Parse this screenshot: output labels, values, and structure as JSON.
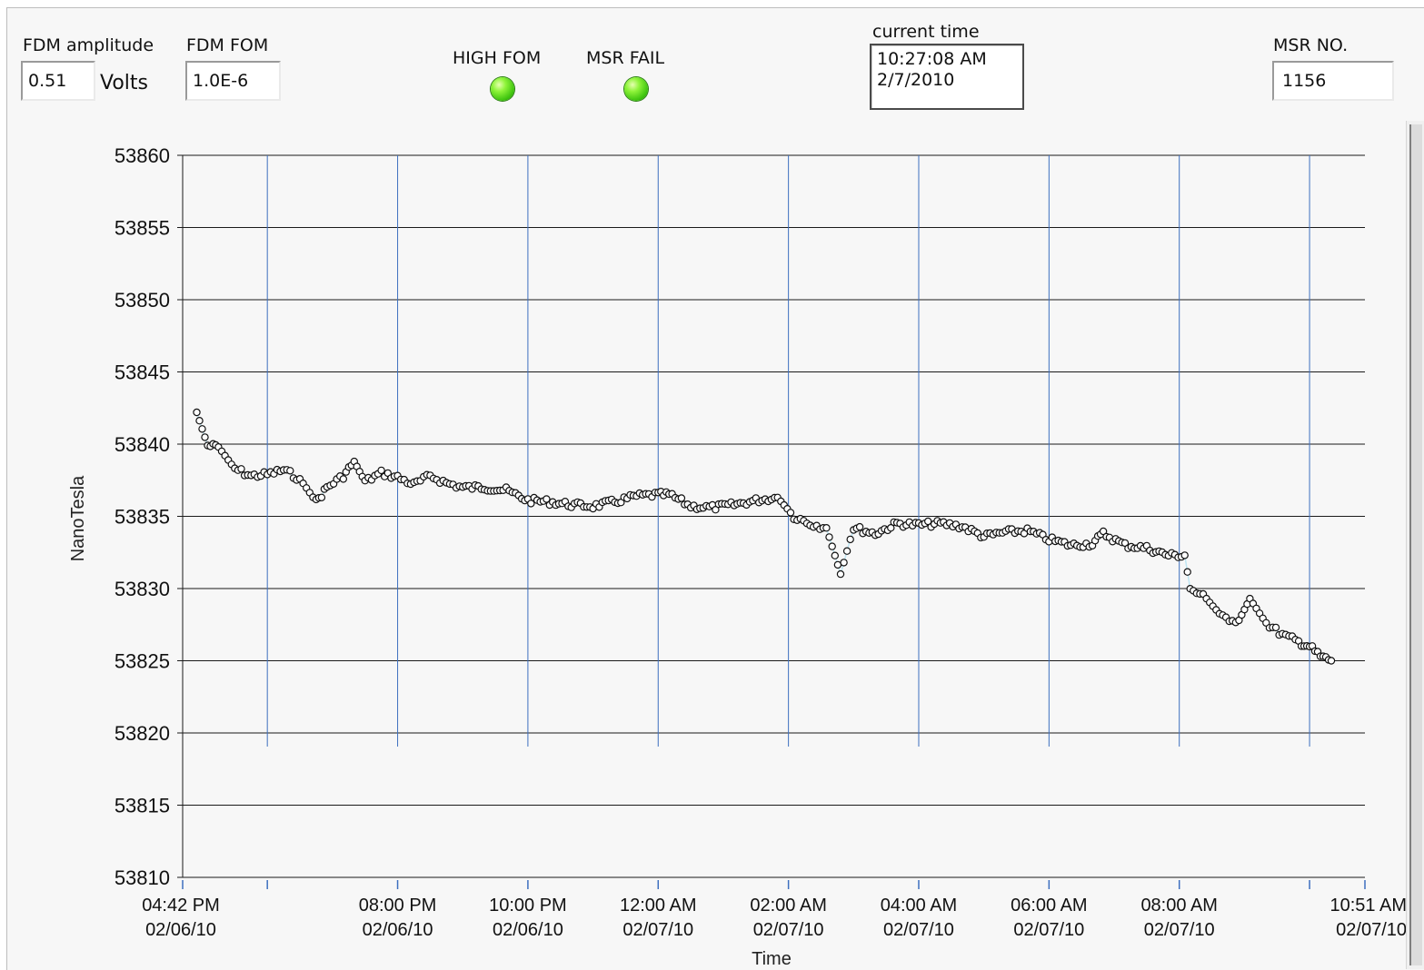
{
  "controls": {
    "fdm_amplitude": {
      "label": "FDM amplitude",
      "value": "0.51",
      "unit": "Volts"
    },
    "fdm_fom": {
      "label": "FDM FOM",
      "value": "1.0E-6"
    },
    "high_fom": {
      "label": "HIGH FOM",
      "state": "on",
      "color": "#4cd11a"
    },
    "msr_fail": {
      "label": "MSR FAIL",
      "state": "on",
      "color": "#4cd11a"
    },
    "current_time": {
      "label": "current time",
      "time": "10:27:08 AM",
      "date": "2/7/2010"
    },
    "msr_no": {
      "label": "MSR NO.",
      "value": "1156"
    }
  },
  "chart_data": {
    "type": "scatter",
    "ylabel": "NanoTesla",
    "xlabel": "Time",
    "ylim": [
      53810,
      53860
    ],
    "yticks": [
      "53860",
      "53855",
      "53850",
      "53845",
      "53840",
      "53835",
      "53830",
      "53825",
      "53820",
      "53815",
      "53810"
    ],
    "xlim": [
      "2010-02-06 16:42",
      "2010-02-07 10:51"
    ],
    "xticks": [
      {
        "t": "2010-02-06 16:42",
        "time": "04:42 PM",
        "date": "02/06/10"
      },
      {
        "t": "2010-02-06 18:00",
        "time": "",
        "date": ""
      },
      {
        "t": "2010-02-06 20:00",
        "time": "08:00 PM",
        "date": "02/06/10"
      },
      {
        "t": "2010-02-06 22:00",
        "time": "10:00 PM",
        "date": "02/06/10"
      },
      {
        "t": "2010-02-07 00:00",
        "time": "12:00 AM",
        "date": "02/07/10"
      },
      {
        "t": "2010-02-07 02:00",
        "time": "02:00 AM",
        "date": "02/07/10"
      },
      {
        "t": "2010-02-07 04:00",
        "time": "04:00 AM",
        "date": "02/07/10"
      },
      {
        "t": "2010-02-07 06:00",
        "time": "06:00 AM",
        "date": "02/07/10"
      },
      {
        "t": "2010-02-07 08:00",
        "time": "08:00 AM",
        "date": "02/07/10"
      },
      {
        "t": "2010-02-07 10:00",
        "time": "",
        "date": ""
      },
      {
        "t": "2010-02-07 10:51",
        "time": "10:51 AM",
        "date": "02/07/10"
      }
    ],
    "grid": true,
    "marker": "open-circle",
    "line_color": "#bfe6f3",
    "series": [
      {
        "points": [
          [
            "2010-02-06 16:55",
            53842.2
          ],
          [
            "2010-02-06 17:05",
            53839.9
          ],
          [
            "2010-02-06 17:15",
            53839.8
          ],
          [
            "2010-02-06 17:30",
            53838.3
          ],
          [
            "2010-02-06 17:45",
            53837.8
          ],
          [
            "2010-02-06 18:00",
            53837.9
          ],
          [
            "2010-02-06 18:15",
            53838.2
          ],
          [
            "2010-02-06 18:30",
            53837.6
          ],
          [
            "2010-02-06 18:45",
            53836.0
          ],
          [
            "2010-02-06 18:55",
            53837.0
          ],
          [
            "2010-02-06 19:10",
            53837.8
          ],
          [
            "2010-02-06 19:20",
            53838.8
          ],
          [
            "2010-02-06 19:30",
            53837.4
          ],
          [
            "2010-02-06 19:45",
            53838.0
          ],
          [
            "2010-02-06 20:00",
            53837.7
          ],
          [
            "2010-02-06 20:15",
            53837.2
          ],
          [
            "2010-02-06 20:30",
            53837.8
          ],
          [
            "2010-02-06 20:45",
            53837.3
          ],
          [
            "2010-02-06 21:00",
            53837.0
          ],
          [
            "2010-02-06 21:20",
            53837.0
          ],
          [
            "2010-02-06 21:40",
            53836.8
          ],
          [
            "2010-02-06 22:00",
            53836.1
          ],
          [
            "2010-02-06 22:20",
            53836.0
          ],
          [
            "2010-02-06 22:40",
            53835.8
          ],
          [
            "2010-02-06 23:00",
            53835.7
          ],
          [
            "2010-02-06 23:20",
            53836.0
          ],
          [
            "2010-02-06 23:40",
            53836.4
          ],
          [
            "2010-02-07 00:00",
            53836.5
          ],
          [
            "2010-02-07 00:10",
            53836.5
          ],
          [
            "2010-02-07 00:30",
            53835.7
          ],
          [
            "2010-02-07 00:50",
            53835.6
          ],
          [
            "2010-02-07 01:10",
            53835.8
          ],
          [
            "2010-02-07 01:30",
            53836.1
          ],
          [
            "2010-02-07 01:50",
            53836.3
          ],
          [
            "2010-02-07 02:05",
            53835.0
          ],
          [
            "2010-02-07 02:20",
            53834.5
          ],
          [
            "2010-02-07 02:35",
            53834.2
          ],
          [
            "2010-02-07 02:48",
            53831.0
          ],
          [
            "2010-02-07 03:00",
            53834.2
          ],
          [
            "2010-02-07 03:20",
            53833.8
          ],
          [
            "2010-02-07 03:40",
            53834.5
          ],
          [
            "2010-02-07 04:00",
            53834.4
          ],
          [
            "2010-02-07 04:20",
            53834.5
          ],
          [
            "2010-02-07 04:40",
            53834.3
          ],
          [
            "2010-02-07 05:00",
            53833.6
          ],
          [
            "2010-02-07 05:20",
            53833.9
          ],
          [
            "2010-02-07 05:40",
            53834.0
          ],
          [
            "2010-02-07 06:00",
            53833.4
          ],
          [
            "2010-02-07 06:20",
            53833.0
          ],
          [
            "2010-02-07 06:40",
            53833.1
          ],
          [
            "2010-02-07 06:50",
            53833.8
          ],
          [
            "2010-02-07 07:10",
            53833.0
          ],
          [
            "2010-02-07 07:30",
            53832.8
          ],
          [
            "2010-02-07 07:50",
            53832.3
          ],
          [
            "2010-02-07 08:05",
            53832.3
          ],
          [
            "2010-02-07 08:10",
            53830.0
          ],
          [
            "2010-02-07 08:25",
            53829.3
          ],
          [
            "2010-02-07 08:40",
            53828.0
          ],
          [
            "2010-02-07 08:55",
            53827.8
          ],
          [
            "2010-02-07 09:05",
            53829.3
          ],
          [
            "2010-02-07 09:20",
            53827.6
          ],
          [
            "2010-02-07 09:35",
            53826.8
          ],
          [
            "2010-02-07 09:50",
            53826.3
          ],
          [
            "2010-02-07 10:00",
            53826.0
          ],
          [
            "2010-02-07 10:10",
            53825.3
          ],
          [
            "2010-02-07 10:20",
            53825.0
          ]
        ]
      }
    ]
  }
}
